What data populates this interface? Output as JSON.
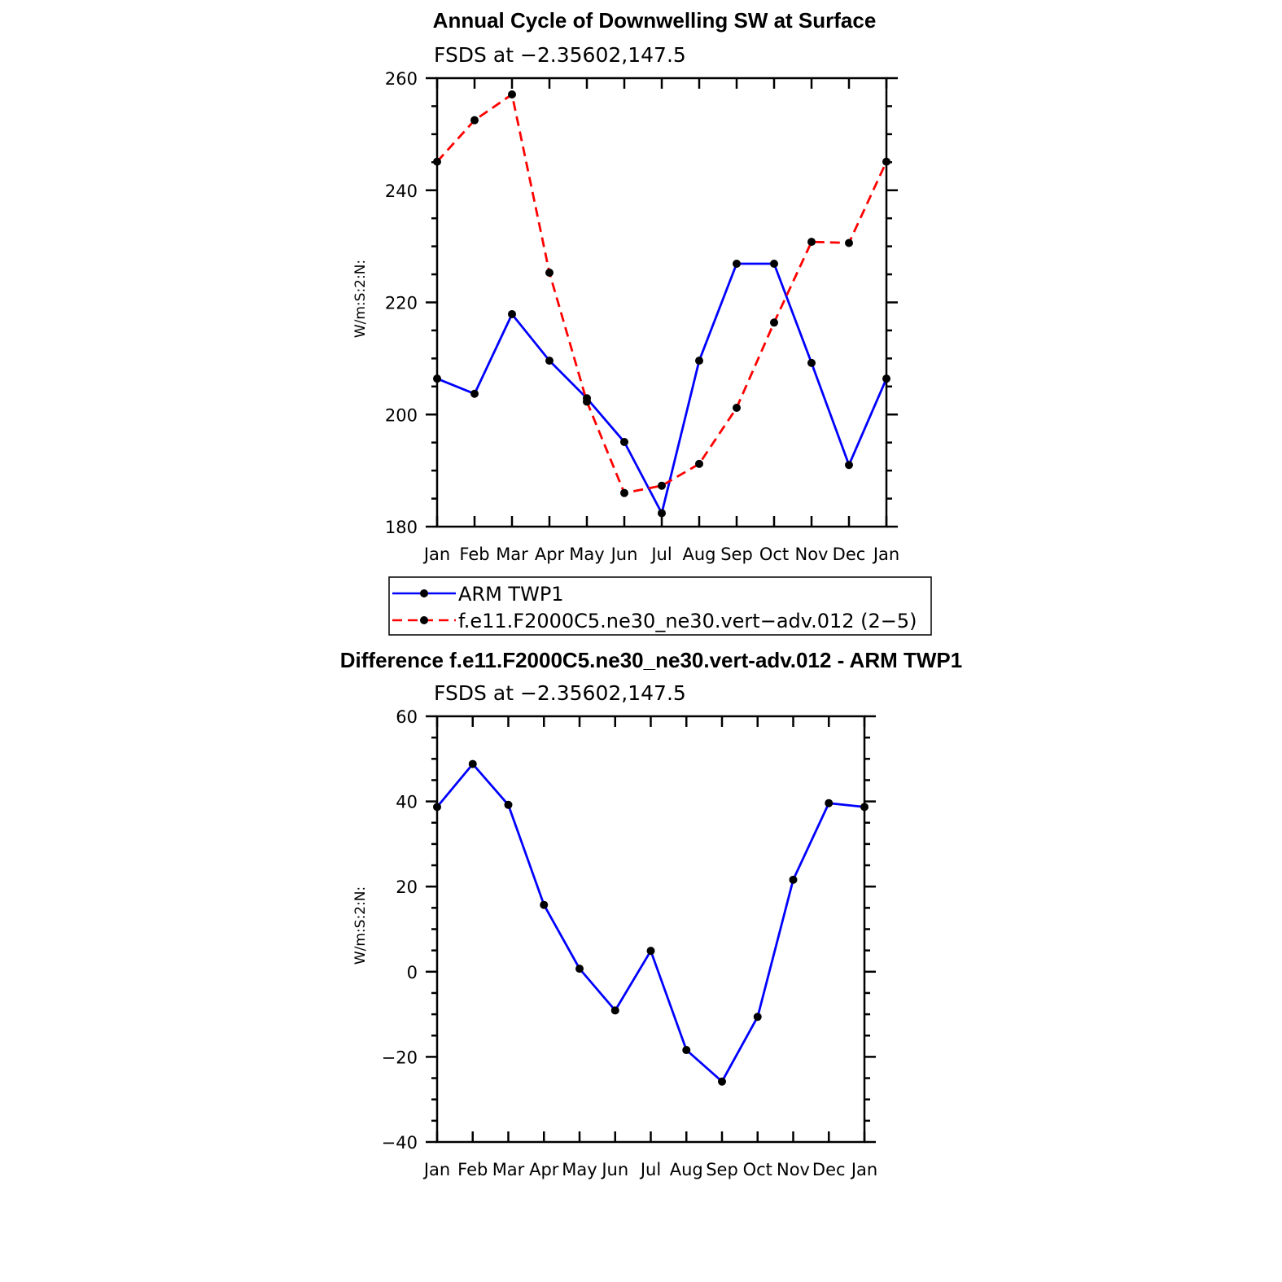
{
  "chart_data": [
    {
      "type": "line",
      "title": "Annual Cycle of Downwelling SW at Surface",
      "subtitle": "FSDS at −2.35602,147.5",
      "ylabel": "W/m:S:2:N:",
      "categories": [
        "Jan",
        "Feb",
        "Mar",
        "Apr",
        "May",
        "Jun",
        "Jul",
        "Aug",
        "Sep",
        "Oct",
        "Nov",
        "Dec",
        "Jan"
      ],
      "ylim": [
        180,
        260
      ],
      "yticks": [
        "180",
        "200",
        "220",
        "240",
        "260"
      ],
      "series": [
        {
          "name": "ARM TWP1",
          "color": "#0000ff",
          "dash": "solid",
          "values": [
            206.4,
            203.7,
            217.9,
            209.6,
            202.9,
            195.1,
            182.4,
            209.6,
            226.9,
            226.9,
            209.2,
            191.0,
            206.4
          ]
        },
        {
          "name": "f.e11.F2000C5.ne30_ne30.vert−adv.012 (2−5)",
          "color": "#ff0000",
          "dash": "dashed",
          "values": [
            245.1,
            252.5,
            257.1,
            225.3,
            202.3,
            186.0,
            187.3,
            191.2,
            201.2,
            216.4,
            230.8,
            230.6,
            245.1
          ]
        }
      ]
    },
    {
      "type": "line",
      "title": "Difference f.e11.F2000C5.ne30_ne30.vert-adv.012 - ARM TWP1",
      "subtitle": "FSDS at −2.35602,147.5",
      "ylabel": "W/m:S:2:N:",
      "categories": [
        "Jan",
        "Feb",
        "Mar",
        "Apr",
        "May",
        "Jun",
        "Jul",
        "Aug",
        "Sep",
        "Oct",
        "Nov",
        "Dec",
        "Jan"
      ],
      "ylim": [
        -40,
        60
      ],
      "yticks": [
        "−40",
        "−20",
        "0",
        "20",
        "40",
        "60"
      ],
      "series": [
        {
          "color": "#0000ff",
          "dash": "solid",
          "values": [
            38.7,
            48.8,
            39.2,
            15.7,
            0.7,
            -9.1,
            4.9,
            -18.4,
            -25.8,
            -10.6,
            21.6,
            39.6,
            38.7
          ]
        }
      ]
    }
  ]
}
